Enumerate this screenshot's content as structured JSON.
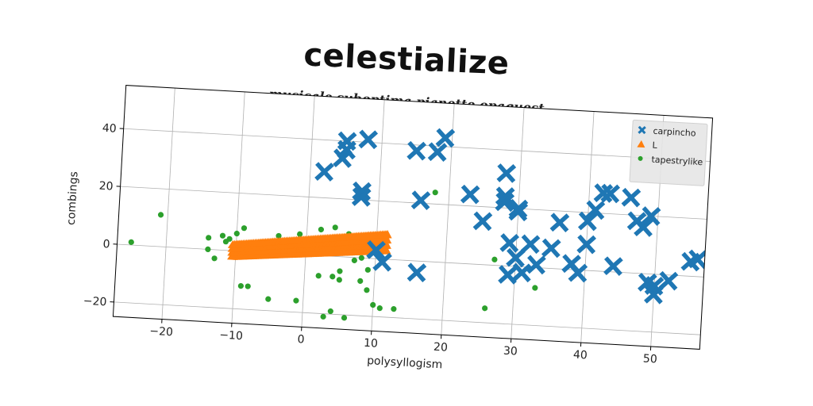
{
  "chart_data": {
    "type": "scatter",
    "title": "celestialize",
    "subtitle": "musicale suboptima pianette opaquest",
    "xlabel": "polysyllogism",
    "ylabel": "combings",
    "xlim": [
      -27,
      57
    ],
    "ylim": [
      -25,
      55
    ],
    "xticks": [
      -20,
      -10,
      0,
      10,
      20,
      30,
      40,
      50
    ],
    "yticks": [
      -20,
      0,
      20,
      40
    ],
    "grid": true,
    "legend_position": "top-right",
    "series": [
      {
        "name": "carpincho",
        "marker": "x",
        "color": "#1f77b4",
        "points": [
          [
            2,
            29
          ],
          [
            4.5,
            34
          ],
          [
            5,
            37
          ],
          [
            5,
            40
          ],
          [
            8,
            41
          ],
          [
            7.5,
            23
          ],
          [
            7.5,
            21
          ],
          [
            15,
            38
          ],
          [
            16,
            21
          ],
          [
            18,
            38
          ],
          [
            19,
            43
          ],
          [
            23,
            24
          ],
          [
            25,
            15
          ],
          [
            28,
            32
          ],
          [
            28,
            24
          ],
          [
            28,
            22
          ],
          [
            30,
            19
          ],
          [
            30,
            20
          ],
          [
            29,
            8
          ],
          [
            32,
            8
          ],
          [
            30,
            3
          ],
          [
            29,
            -3
          ],
          [
            31,
            -2
          ],
          [
            33,
            1
          ],
          [
            36,
            16
          ],
          [
            35,
            7
          ],
          [
            38,
            2
          ],
          [
            39,
            -1
          ],
          [
            40,
            9
          ],
          [
            40,
            17
          ],
          [
            41,
            21
          ],
          [
            43,
            27
          ],
          [
            42,
            27
          ],
          [
            44,
            2
          ],
          [
            46,
            26
          ],
          [
            47,
            18
          ],
          [
            48,
            16
          ],
          [
            49,
            20
          ],
          [
            49,
            -3
          ],
          [
            50,
            -7
          ],
          [
            50,
            -4
          ],
          [
            52,
            -2
          ],
          [
            55,
            5
          ],
          [
            56,
            6
          ],
          [
            10,
            3
          ],
          [
            11,
            -1
          ],
          [
            16,
            -4
          ]
        ]
      },
      {
        "name": "L",
        "marker": "triangle",
        "color": "#ff7f0e",
        "line_segment": {
          "x_start": -10.5,
          "x_end": 11.5,
          "y_top_start": 2,
          "y_top_end": 8.5,
          "y_bottom_start": -2,
          "y_bottom_end": 3
        }
      },
      {
        "name": "tapestrylike",
        "marker": "dot",
        "color": "#2ca02c",
        "points": [
          [
            -25,
            1
          ],
          [
            -21,
            11
          ],
          [
            -14,
            4
          ],
          [
            -14,
            0
          ],
          [
            -13,
            -3
          ],
          [
            -12,
            5
          ],
          [
            -11.5,
            3
          ],
          [
            -11,
            4
          ],
          [
            -10,
            6
          ],
          [
            -9,
            8
          ],
          [
            -9,
            -12
          ],
          [
            -8,
            -12
          ],
          [
            -5,
            -16
          ],
          [
            -4,
            6
          ],
          [
            -1,
            7
          ],
          [
            -1,
            -16
          ],
          [
            0,
            2
          ],
          [
            0,
            -27
          ],
          [
            2,
            -7
          ],
          [
            2,
            9
          ],
          [
            3,
            -21
          ],
          [
            4,
            -19
          ],
          [
            4,
            10
          ],
          [
            4,
            -7
          ],
          [
            5,
            -5
          ],
          [
            5,
            -8
          ],
          [
            6,
            8
          ],
          [
            6,
            -21
          ],
          [
            7,
            -1
          ],
          [
            8,
            0
          ],
          [
            8,
            -8
          ],
          [
            9,
            -4
          ],
          [
            9,
            -11
          ],
          [
            10,
            -16
          ],
          [
            11,
            -17
          ],
          [
            13,
            -17
          ],
          [
            15,
            -26
          ],
          [
            18,
            24
          ],
          [
            26,
            -15
          ],
          [
            27,
            2
          ],
          [
            33,
            -7
          ]
        ]
      }
    ]
  }
}
